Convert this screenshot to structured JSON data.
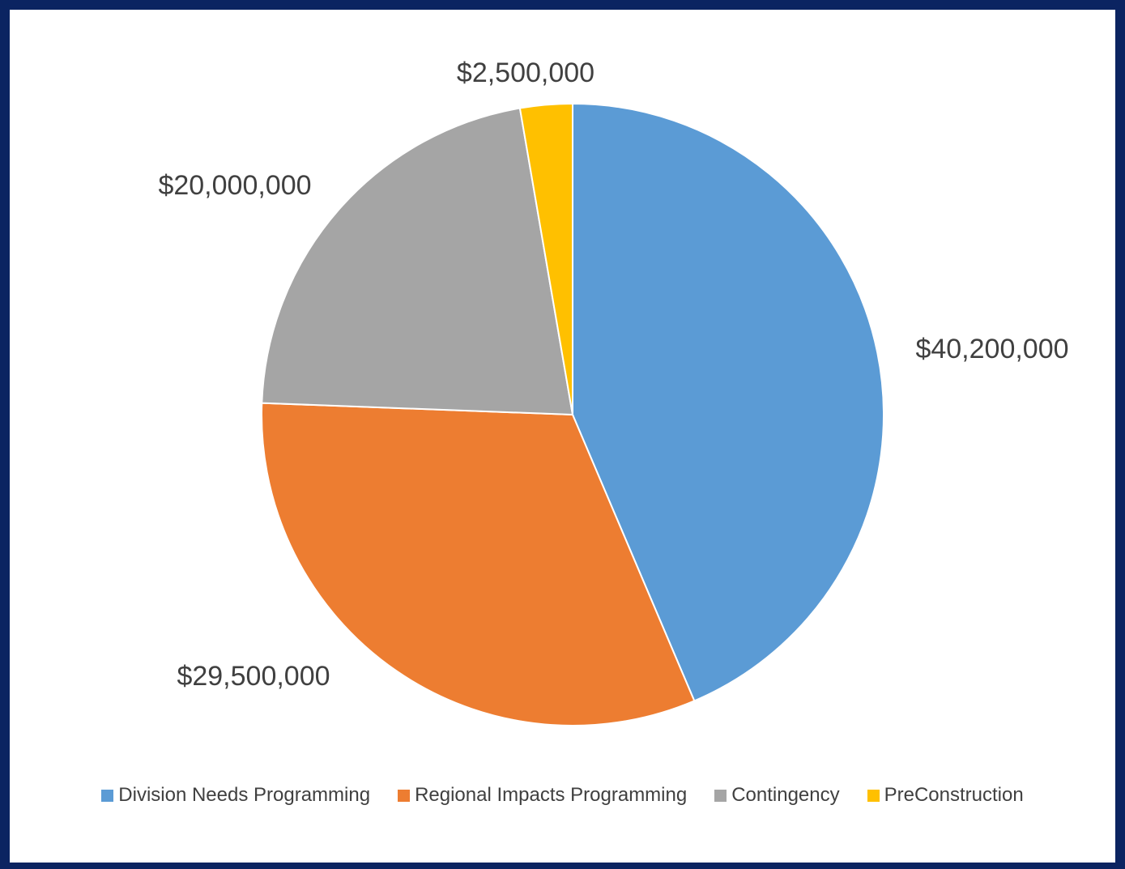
{
  "chart_data": {
    "type": "pie",
    "title": "",
    "slices": [
      {
        "name": "Division Needs Programming",
        "value": 40200000,
        "label": "$40,200,000",
        "color": "#5b9bd5"
      },
      {
        "name": "Regional Impacts Programming",
        "value": 29500000,
        "label": "$29,500,000",
        "color": "#ed7d31"
      },
      {
        "name": "Contingency",
        "value": 20000000,
        "label": "$20,000,000",
        "color": "#a5a5a5"
      },
      {
        "name": "PreConstruction",
        "value": 2500000,
        "label": "$2,500,000",
        "color": "#ffc000"
      }
    ],
    "legend_position": "bottom",
    "start_angle": "12 o'clock",
    "direction": "clockwise"
  },
  "colors": {
    "frame": "#0b2461",
    "background": "#ffffff",
    "text": "#404040"
  }
}
